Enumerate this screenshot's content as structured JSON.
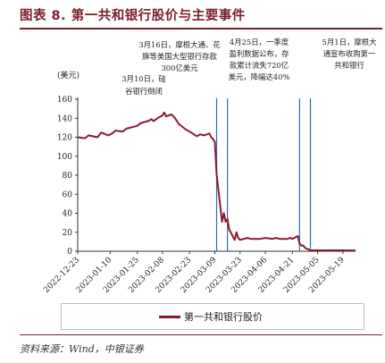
{
  "figure": {
    "title": "图表 8. 第一共和银行股价与主要事件",
    "source": "资料来源：Wind，中银证券",
    "unit_label": "(美元)"
  },
  "chart_data": {
    "type": "line",
    "title": "图表 8. 第一共和银行股价与主要事件",
    "ylabel": "(美元)",
    "ylim": [
      0,
      160
    ],
    "yticks": [
      0,
      20,
      40,
      60,
      80,
      100,
      120,
      140,
      160
    ],
    "xlim": [
      "2022-12-23",
      "2023-05-26"
    ],
    "xtick_labels": [
      "2022-12-23",
      "2023-01-10",
      "2023-01-25",
      "2023-02-08",
      "2023-02-23",
      "2023-03-09",
      "2023-03-23",
      "2023-04-06",
      "2023-04-21",
      "2023-05-05",
      "2023-05-19"
    ],
    "grid": false,
    "legend_position": "bottom",
    "series": [
      {
        "name": "第一共和银行股价",
        "color": "#8b1a30",
        "points": [
          [
            "2022-12-23",
            120
          ],
          [
            "2022-12-27",
            119
          ],
          [
            "2022-12-29",
            122
          ],
          [
            "2023-01-03",
            120
          ],
          [
            "2023-01-05",
            125
          ],
          [
            "2023-01-09",
            122
          ],
          [
            "2023-01-11",
            124
          ],
          [
            "2023-01-13",
            127
          ],
          [
            "2023-01-17",
            126
          ],
          [
            "2023-01-19",
            129
          ],
          [
            "2023-01-23",
            131
          ],
          [
            "2023-01-25",
            132
          ],
          [
            "2023-01-27",
            135
          ],
          [
            "2023-01-31",
            137
          ],
          [
            "2023-02-02",
            139
          ],
          [
            "2023-02-03",
            137
          ],
          [
            "2023-02-06",
            141
          ],
          [
            "2023-02-08",
            143
          ],
          [
            "2023-02-09",
            146
          ],
          [
            "2023-02-10",
            142
          ],
          [
            "2023-02-13",
            144
          ],
          [
            "2023-02-15",
            140
          ],
          [
            "2023-02-17",
            134
          ],
          [
            "2023-02-21",
            128
          ],
          [
            "2023-02-23",
            126
          ],
          [
            "2023-02-27",
            121
          ],
          [
            "2023-03-01",
            123
          ],
          [
            "2023-03-03",
            122
          ],
          [
            "2023-03-06",
            124
          ],
          [
            "2023-03-07",
            120
          ],
          [
            "2023-03-08",
            118
          ],
          [
            "2023-03-09",
            115
          ],
          [
            "2023-03-10",
            81
          ],
          [
            "2023-03-13",
            31
          ],
          [
            "2023-03-14",
            40
          ],
          [
            "2023-03-15",
            31
          ],
          [
            "2023-03-16",
            34
          ],
          [
            "2023-03-17",
            23
          ],
          [
            "2023-03-20",
            12
          ],
          [
            "2023-03-21",
            20
          ],
          [
            "2023-03-22",
            14
          ],
          [
            "2023-03-23",
            12
          ],
          [
            "2023-03-27",
            14
          ],
          [
            "2023-03-29",
            13
          ],
          [
            "2023-03-31",
            13
          ],
          [
            "2023-04-03",
            13
          ],
          [
            "2023-04-06",
            14
          ],
          [
            "2023-04-10",
            13
          ],
          [
            "2023-04-12",
            14
          ],
          [
            "2023-04-14",
            13
          ],
          [
            "2023-04-18",
            13
          ],
          [
            "2023-04-20",
            14
          ],
          [
            "2023-04-21",
            13
          ],
          [
            "2023-04-24",
            16
          ],
          [
            "2023-04-25",
            8
          ],
          [
            "2023-04-26",
            6
          ],
          [
            "2023-04-27",
            6
          ],
          [
            "2023-04-28",
            3.5
          ],
          [
            "2023-05-01",
            1
          ],
          [
            "2023-05-26",
            0.8
          ]
        ]
      }
    ],
    "event_markers": [
      {
        "date": "2023-03-10",
        "color": "#2f6fb3"
      },
      {
        "date": "2023-03-16",
        "color": "#2f6fb3"
      },
      {
        "date": "2023-04-25",
        "color": "#2f6fb3"
      },
      {
        "date": "2023-05-01",
        "color": "#2f6fb3"
      }
    ],
    "annotations": [
      {
        "id": "ann-0310",
        "lines": [
          "3月10日，硅",
          "谷银行倒闭"
        ]
      },
      {
        "id": "ann-0316",
        "lines": [
          "3月16日，摩根大通、花",
          "旗等美国大型银行存款",
          "300亿美元"
        ]
      },
      {
        "id": "ann-0425",
        "lines": [
          "4月25日，一季度",
          "盈利数据公布，存",
          "款累计流失720亿",
          "美元，降幅达40%"
        ]
      },
      {
        "id": "ann-0501",
        "lines": [
          "5月1日，摩根大",
          "通宣布收购第一",
          "共和银行"
        ]
      }
    ]
  }
}
